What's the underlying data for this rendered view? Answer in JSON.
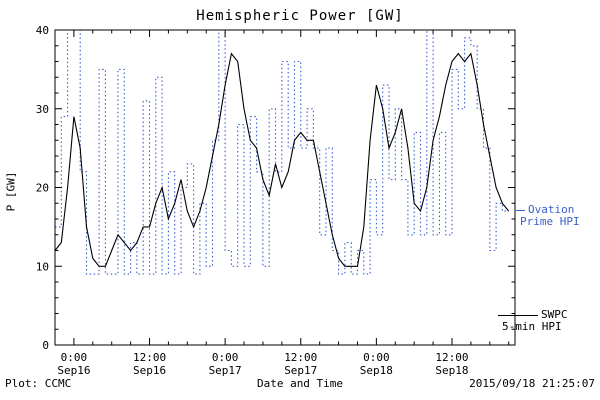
{
  "title": "Hemispheric Power [GW]",
  "footer": {
    "left": "Plot: CCMC",
    "right": "2015/09/18 21:25:07"
  },
  "legend": {
    "ovation": {
      "line1": "Ovation",
      "line2": "Prime HPI",
      "color": "#3a5fce"
    },
    "swpc": {
      "line1": "SWPC",
      "line2": "5-min HPI",
      "color": "#000000"
    }
  },
  "chart_data": {
    "type": "line",
    "title": "Hemispheric Power [GW]",
    "xlabel": "Date and Time",
    "ylabel": "P [GW]",
    "ylim": [
      0,
      40
    ],
    "y_ticks": [
      0,
      10,
      20,
      30,
      40
    ],
    "x_hours_range": [
      0,
      73
    ],
    "x_ticks": [
      {
        "t": 3,
        "time": "0:00",
        "date": "Sep16"
      },
      {
        "t": 15,
        "time": "12:00",
        "date": "Sep16"
      },
      {
        "t": 27,
        "time": "0:00",
        "date": "Sep17"
      },
      {
        "t": 39,
        "time": "12:00",
        "date": "Sep17"
      },
      {
        "t": 51,
        "time": "0:00",
        "date": "Sep18"
      },
      {
        "t": 63,
        "time": "12:00",
        "date": "Sep18"
      }
    ],
    "series": [
      {
        "name": "Ovation Prime HPI",
        "color": "#3a5fce",
        "style": "dotted-step",
        "t_start": 0,
        "t_step": 1,
        "values": [
          15,
          29,
          40,
          40,
          22,
          9,
          9,
          35,
          9,
          9,
          35,
          9,
          13,
          9,
          31,
          9,
          34,
          9,
          22,
          9,
          20,
          23,
          9,
          18,
          10,
          26,
          40,
          12,
          10,
          28,
          10,
          29,
          22,
          10,
          30,
          22,
          36,
          25,
          36,
          25,
          30,
          25,
          14,
          25,
          12,
          9,
          13,
          9,
          12,
          9,
          21,
          14,
          33,
          21,
          30,
          21,
          14,
          27,
          14,
          40,
          14,
          27,
          14,
          35,
          30,
          39,
          38,
          30,
          25,
          12,
          18,
          17,
          17
        ]
      },
      {
        "name": "SWPC 5-min HPI",
        "color": "#000000",
        "style": "solid",
        "t_start": 0,
        "t_step": 1,
        "values": [
          12,
          13,
          20,
          29,
          25,
          15,
          11,
          10,
          10,
          12,
          14,
          13,
          12,
          13,
          15,
          15,
          18,
          20,
          16,
          18,
          21,
          17,
          15,
          17,
          20,
          24,
          28,
          33,
          37,
          36,
          30,
          26,
          25,
          21,
          19,
          23,
          20,
          22,
          26,
          27,
          26,
          26,
          22,
          18,
          14,
          11,
          10,
          10,
          10,
          15,
          26,
          33,
          30,
          25,
          27,
          30,
          25,
          18,
          17,
          20,
          26,
          29,
          33,
          36,
          37,
          36,
          37,
          33,
          28,
          24,
          20,
          18,
          17
        ]
      }
    ]
  }
}
